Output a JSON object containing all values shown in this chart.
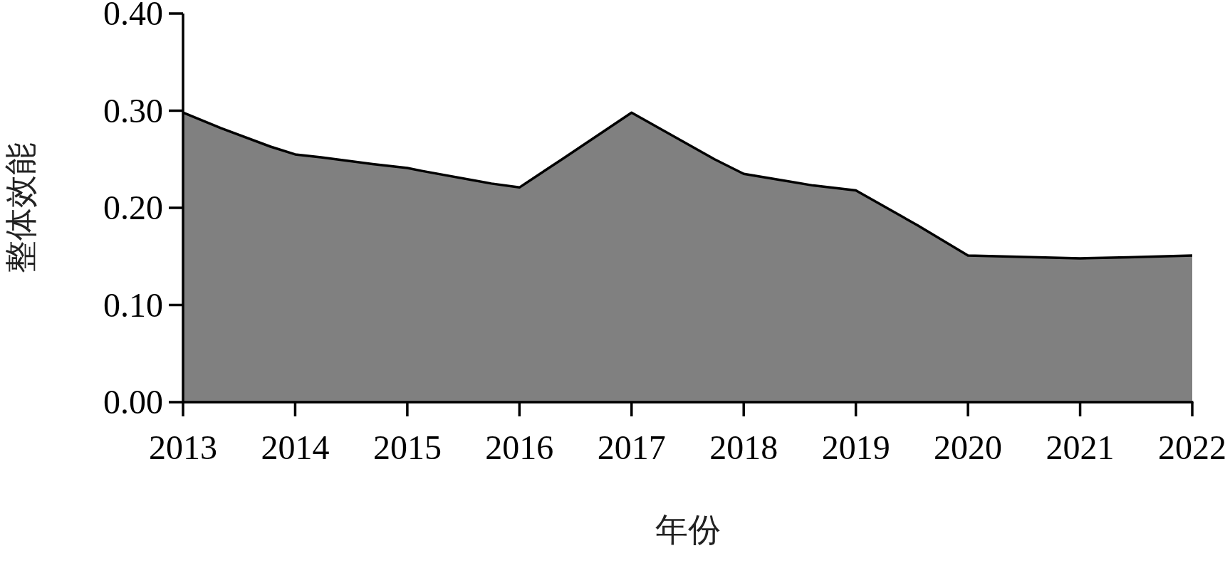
{
  "chart_data": {
    "type": "area",
    "xlabel": "年份",
    "ylabel": "整体效能",
    "x": [
      2013,
      2013.34,
      2013.78,
      2014,
      2014.23,
      2014.69,
      2015,
      2015.13,
      2015.75,
      2016,
      2016.38,
      2017,
      2017.74,
      2018,
      2018.62,
      2019,
      2019.55,
      2020,
      2021,
      2021.43,
      2022
    ],
    "series": [
      {
        "color": "#808080",
        "values": [
          0.298,
          0.282,
          0.263,
          0.255,
          0.252,
          0.245,
          0.241,
          0.238,
          0.225,
          0.221,
          0.25,
          0.298,
          0.25,
          0.235,
          0.223,
          0.218,
          0.182,
          0.151,
          0.148,
          0.149,
          0.151
        ]
      }
    ],
    "xlim": [
      2013,
      2022
    ],
    "ylim": [
      0,
      0.4
    ],
    "xticks": [
      2013,
      2014,
      2015,
      2016,
      2017,
      2018,
      2019,
      2020,
      2021,
      2022
    ],
    "yticks": [
      {
        "value": 0,
        "label": "0.00"
      },
      {
        "value": 0.1,
        "label": "0.10"
      },
      {
        "value": 0.2,
        "label": "0.20"
      },
      {
        "value": 0.3,
        "label": "0.30"
      },
      {
        "value": 0.4,
        "label": "0.40"
      }
    ]
  }
}
